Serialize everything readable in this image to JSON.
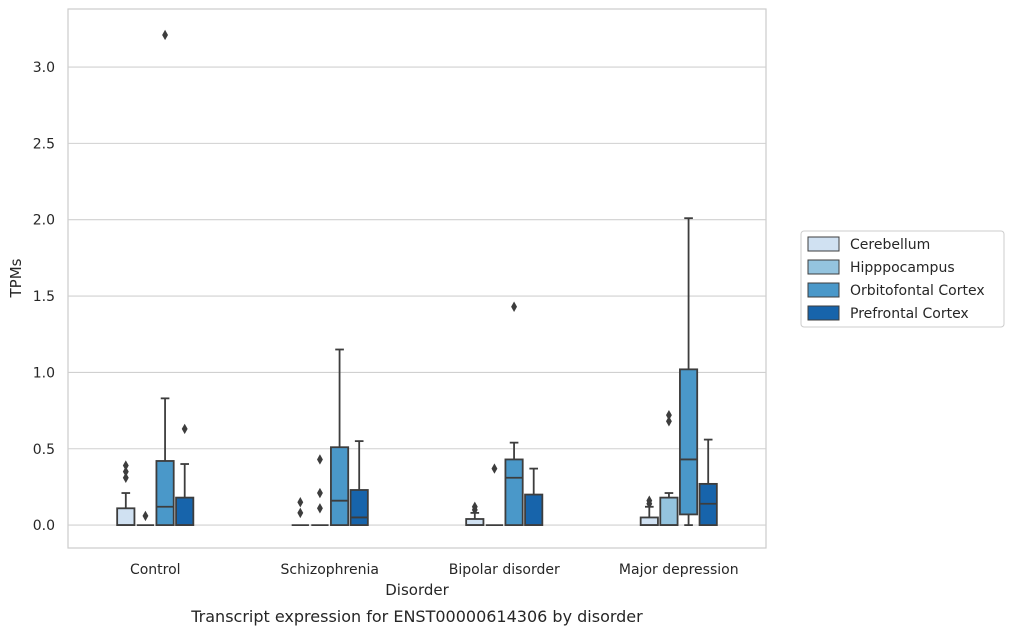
{
  "chart_data": {
    "type": "box",
    "caption": "Transcript expression for ENST00000614306 by disorder",
    "xlabel": "Disorder",
    "ylabel": "TPMs",
    "ylim": [
      -0.15,
      3.38
    ],
    "yticks": [
      0.0,
      0.5,
      1.0,
      1.5,
      2.0,
      2.5,
      3.0
    ],
    "ytick_labels": [
      "0.0",
      "0.5",
      "1.0",
      "1.5",
      "2.0",
      "2.5",
      "3.0"
    ],
    "grid": "horizontal",
    "legend_position": "right",
    "categories": [
      "Control",
      "Schizophrenia",
      "Bipolar disorder",
      "Major depression"
    ],
    "series": [
      {
        "name": "Cerebellum",
        "color": "#d0e1f2",
        "boxes": [
          {
            "whislo": 0.0,
            "q1": 0.0,
            "med": 0.0,
            "q3": 0.11,
            "whishi": 0.21,
            "fliers": [
              0.31,
              0.35,
              0.39
            ]
          },
          {
            "whislo": 0.0,
            "q1": 0.0,
            "med": 0.0,
            "q3": 0.0,
            "whishi": 0.0,
            "fliers": [
              0.08,
              0.15
            ]
          },
          {
            "whislo": 0.0,
            "q1": 0.0,
            "med": 0.0,
            "q3": 0.04,
            "whishi": 0.08,
            "fliers": [
              0.1,
              0.12
            ]
          },
          {
            "whislo": 0.0,
            "q1": 0.0,
            "med": 0.0,
            "q3": 0.05,
            "whishi": 0.12,
            "fliers": [
              0.14,
              0.16
            ]
          }
        ]
      },
      {
        "name": "Hipppocampus",
        "color": "#94c4df",
        "boxes": [
          {
            "whislo": 0.0,
            "q1": 0.0,
            "med": 0.0,
            "q3": 0.0,
            "whishi": 0.0,
            "fliers": [
              0.06
            ]
          },
          {
            "whislo": 0.0,
            "q1": 0.0,
            "med": 0.0,
            "q3": 0.0,
            "whishi": 0.0,
            "fliers": [
              0.11,
              0.21,
              0.43
            ]
          },
          {
            "whislo": 0.0,
            "q1": 0.0,
            "med": 0.0,
            "q3": 0.0,
            "whishi": 0.0,
            "fliers": [
              0.37
            ]
          },
          {
            "whislo": 0.0,
            "q1": 0.0,
            "med": 0.0,
            "q3": 0.18,
            "whishi": 0.21,
            "fliers": [
              0.68,
              0.72
            ]
          }
        ]
      },
      {
        "name": "Orbitofontal Cortex",
        "color": "#4a98c9",
        "boxes": [
          {
            "whislo": 0.0,
            "q1": 0.0,
            "med": 0.12,
            "q3": 0.42,
            "whishi": 0.83,
            "fliers": [
              3.21
            ]
          },
          {
            "whislo": 0.0,
            "q1": 0.0,
            "med": 0.16,
            "q3": 0.51,
            "whishi": 1.15,
            "fliers": []
          },
          {
            "whislo": 0.0,
            "q1": 0.0,
            "med": 0.31,
            "q3": 0.43,
            "whishi": 0.54,
            "fliers": [
              1.43
            ]
          },
          {
            "whislo": 0.0,
            "q1": 0.07,
            "med": 0.43,
            "q3": 1.02,
            "whishi": 2.01,
            "fliers": []
          }
        ]
      },
      {
        "name": "Prefrontal Cortex",
        "color": "#1764ab",
        "boxes": [
          {
            "whislo": 0.0,
            "q1": 0.0,
            "med": 0.0,
            "q3": 0.18,
            "whishi": 0.4,
            "fliers": [
              0.63
            ]
          },
          {
            "whislo": 0.0,
            "q1": 0.0,
            "med": 0.05,
            "q3": 0.23,
            "whishi": 0.55,
            "fliers": []
          },
          {
            "whislo": 0.0,
            "q1": 0.0,
            "med": 0.0,
            "q3": 0.2,
            "whishi": 0.37,
            "fliers": []
          },
          {
            "whislo": 0.0,
            "q1": 0.0,
            "med": 0.14,
            "q3": 0.27,
            "whishi": 0.56,
            "fliers": []
          }
        ]
      }
    ]
  }
}
